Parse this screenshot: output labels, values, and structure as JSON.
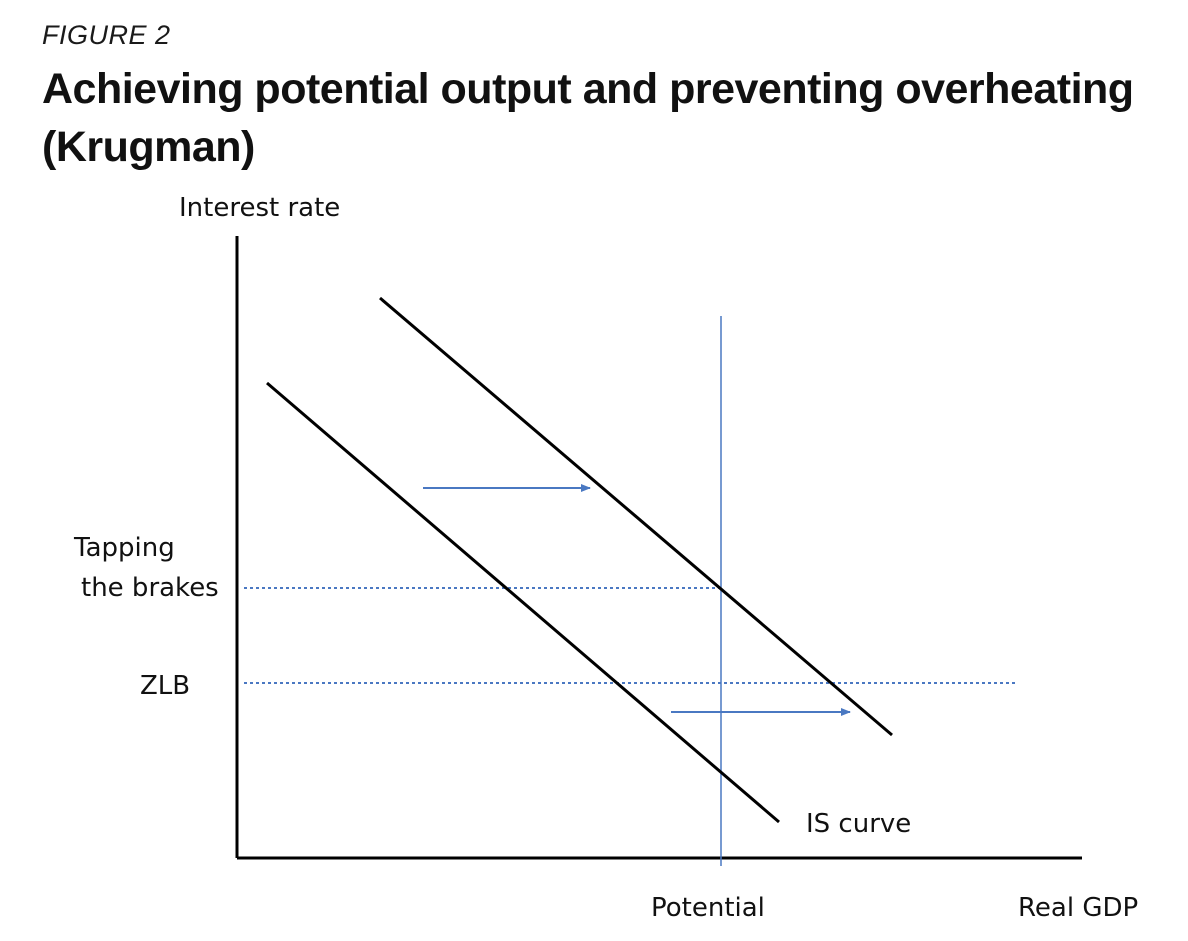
{
  "figure": {
    "label": "FIGURE 2",
    "title": "Achieving potential output and preventing overheating (Krugman)"
  },
  "diagram": {
    "y_axis_label": "Interest rate",
    "x_axis_label": "Real GDP",
    "potential_label": "Potential",
    "is_curve_label": "IS curve",
    "rate_levels": {
      "tapping_line1": "Tapping",
      "tapping_line2": "the brakes",
      "zlb": "ZLB"
    },
    "colors": {
      "curves": "#000000",
      "guides": "#4a78c2",
      "arrows": "#4a78c2"
    }
  }
}
